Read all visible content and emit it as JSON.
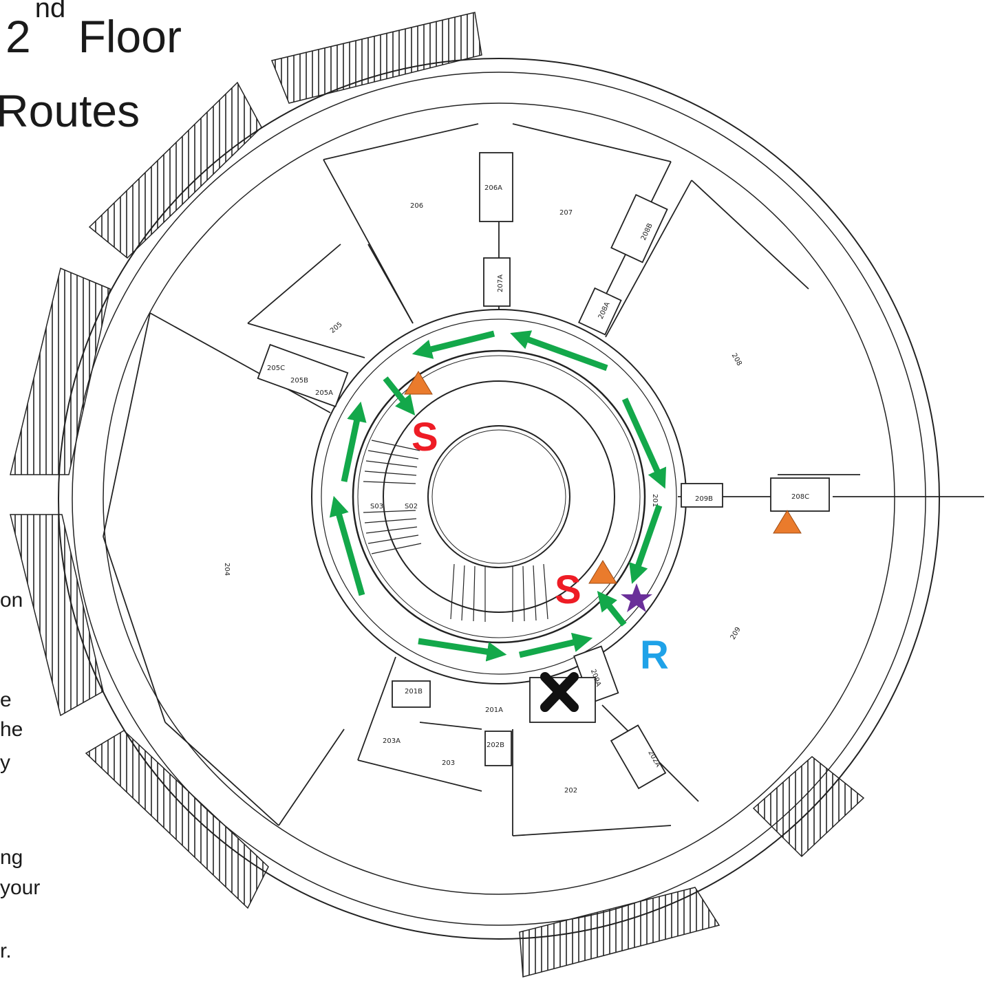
{
  "title": {
    "number": "2",
    "suffix": "nd",
    "floor": "Floor",
    "routes": "Routes"
  },
  "cut_text": [
    "on",
    "e",
    "he",
    "y",
    "ng",
    "your",
    "r."
  ],
  "markers": {
    "stairs_letter": "S",
    "refuge_letter": "R",
    "stairs_color": "#ee1c25",
    "refuge_color": "#1fa2e8",
    "arrow_color": "#13a84a",
    "triangle_color": "#ea7b2c",
    "star_color": "#6a2f99",
    "x_color": "#111111"
  },
  "rooms": [
    "201",
    "201A",
    "201B",
    "202",
    "202A",
    "202B",
    "203",
    "203A",
    "204",
    "205",
    "205A",
    "205B",
    "205C",
    "206",
    "206A",
    "207",
    "207A",
    "208",
    "208A",
    "208B",
    "208C",
    "209",
    "209A",
    "209B",
    "S03",
    "S02"
  ]
}
